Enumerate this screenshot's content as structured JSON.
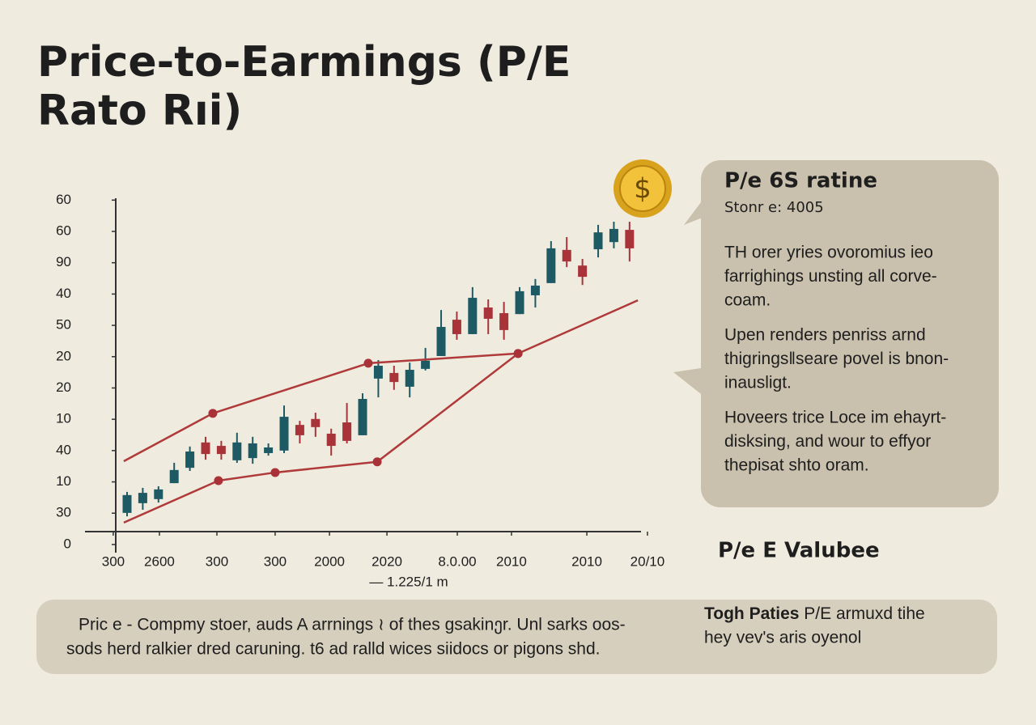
{
  "title_lines": [
    "Price-to-Earmings  (P/E",
    "Rato Rıi)"
  ],
  "chart_data": {
    "type": "candlestick",
    "open": [
      1.01,
      1.32,
      1.45,
      1.96,
      2.45,
      3.26,
      3.15,
      2.69,
      2.76,
      2.92,
      3.0,
      3.82,
      4.01,
      3.54,
      3.9,
      3.49,
      5.3,
      5.48,
      5.04,
      5.61,
      6.02,
      7.18,
      6.72,
      7.57,
      7.39,
      7.36,
      7.96,
      8.35,
      9.41,
      8.91,
      9.43,
      9.66,
      10.05
    ],
    "high": [
      1.68,
      1.81,
      1.86,
      2.61,
      3.13,
      3.44,
      3.31,
      3.57,
      3.44,
      3.23,
      4.44,
      3.95,
      4.21,
      3.7,
      4.52,
      4.83,
      5.89,
      5.71,
      5.81,
      6.28,
      7.49,
      7.44,
      8.22,
      7.83,
      7.75,
      8.22,
      8.48,
      9.69,
      9.82,
      9.12,
      10.21,
      10.31,
      10.31
    ],
    "low": [
      0.9,
      1.11,
      1.34,
      1.96,
      2.35,
      2.71,
      2.71,
      2.61,
      2.58,
      2.84,
      2.92,
      3.23,
      3.44,
      2.84,
      3.23,
      3.49,
      4.7,
      4.94,
      4.7,
      5.56,
      6.02,
      6.54,
      6.72,
      6.72,
      6.54,
      7.36,
      7.57,
      8.35,
      8.86,
      8.29,
      9.17,
      9.46,
      9.04
    ],
    "close": [
      1.58,
      1.65,
      1.76,
      2.38,
      2.97,
      2.89,
      2.89,
      3.26,
      3.23,
      3.1,
      4.08,
      3.49,
      3.75,
      3.15,
      3.31,
      4.65,
      5.71,
      5.19,
      5.58,
      5.87,
      6.95,
      6.72,
      7.88,
      7.21,
      6.85,
      8.09,
      8.27,
      9.46,
      9.04,
      8.55,
      9.97,
      10.08,
      9.46
    ],
    "up_color": "#1d5a63",
    "down_color": "#a8343a",
    "lines": [
      {
        "color": "#b03a3a",
        "x": [
          -0.21,
          5.46,
          15.36,
          24.9,
          32.53
        ],
        "values": [
          2.66,
          4.19,
          5.79,
          6.1,
          7.8
        ]
      },
      {
        "color": "#b03a3a",
        "x": [
          -0.21,
          5.82,
          9.43,
          15.93,
          24.9
        ],
        "values": [
          0.7,
          2.04,
          2.3,
          2.64,
          6.1
        ]
      }
    ],
    "xlabel": "— 1.225/1 m",
    "xlim": [
      -2.68,
      32.73
    ],
    "xticks": [
      {
        "value": -0.88,
        "label": "300"
      },
      {
        "value": 2.06,
        "label": "2600"
      },
      {
        "value": 5.72,
        "label": "300"
      },
      {
        "value": 9.43,
        "label": "300"
      },
      {
        "value": 12.89,
        "label": "2000"
      },
      {
        "value": 16.55,
        "label": "2020"
      },
      {
        "value": 21.03,
        "label": "8.0.00"
      },
      {
        "value": 24.48,
        "label": "2010"
      },
      {
        "value": 29.28,
        "label": "2010"
      },
      {
        "value": 33.14,
        "label": "20/10"
      }
    ],
    "ylim": [
      -0.26,
      11.06
    ],
    "yticks": [
      0,
      {
        "value": 1,
        "label": "30"
      },
      {
        "value": 2,
        "label": "10"
      },
      {
        "value": 3,
        "label": "40"
      },
      {
        "value": 4,
        "label": "10"
      },
      {
        "value": 5,
        "label": "20"
      },
      {
        "value": 6,
        "label": "20"
      },
      {
        "value": 7,
        "label": "50"
      },
      {
        "value": 8,
        "label": "40"
      },
      {
        "value": 9,
        "label": "90"
      },
      {
        "value": 10,
        "label": "60"
      },
      {
        "value": 11,
        "label": "60"
      }
    ]
  },
  "callout": {
    "heading": "P/e 6S ratine",
    "subheading": "Stonr e: 4005",
    "paragraphs": [
      [
        "TH orer yries ovoromius ieo",
        "farrighings unsting all corve-",
        "coam."
      ],
      [
        "Upen renders penriss arnd",
        "thigrings‖seare povel is bnon-",
        "inausligt."
      ],
      [
        "Hoveers trice Loce im ehayrt-",
        "disksing, and wour to effyor",
        "thepisat shto oram."
      ]
    ]
  },
  "value_heading": "P/e E Valubee",
  "footer": {
    "left_lines": [
      "Pric e - Compmy stoer, auds A arrnings ≀ of thes gsakinეr. Unl sarks oos-",
      "sods herd ralkier dred caruning. t6 ad ralld wices siidocs or pigons shd."
    ],
    "right_bold": "Togh Paties",
    "right_lines": [
      " P/E armuxd tihe",
      "hey vev's aris oyenol"
    ]
  }
}
